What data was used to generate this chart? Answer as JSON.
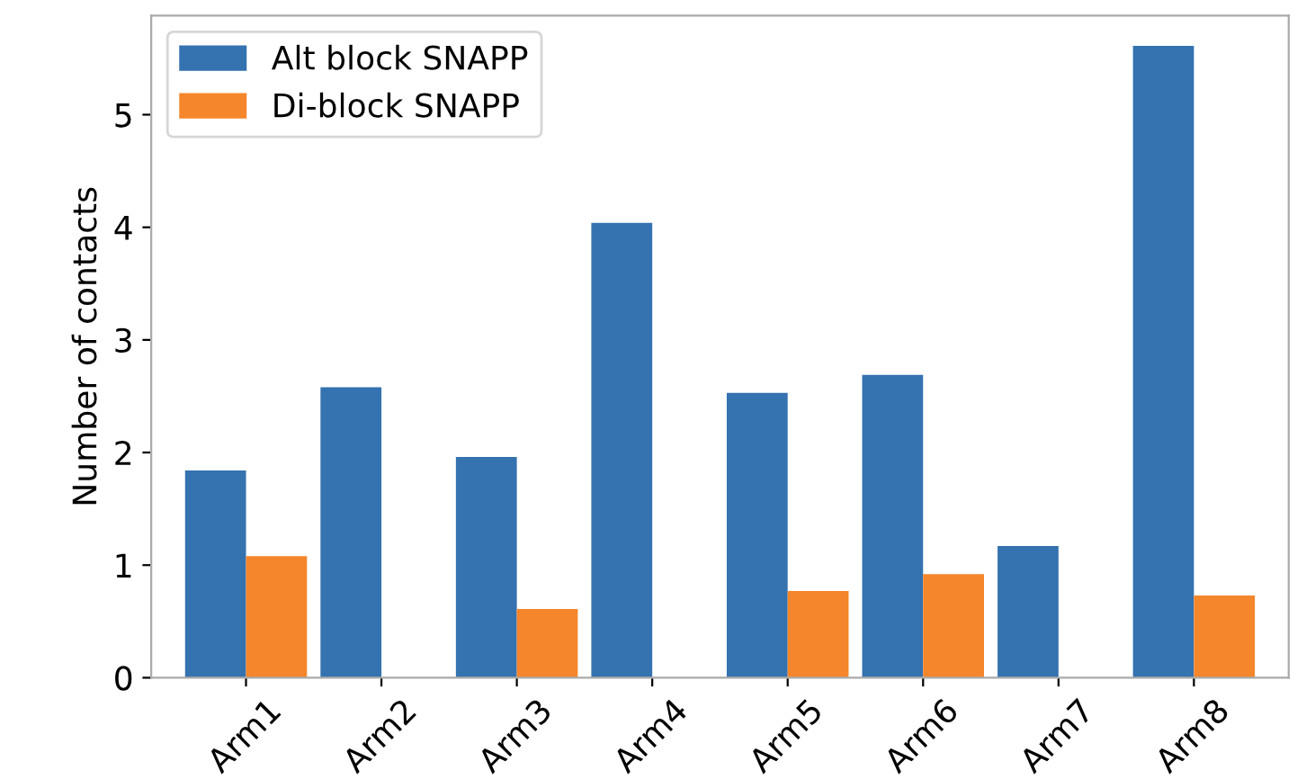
{
  "chart_data": {
    "type": "bar",
    "ylabel": "Number of contacts",
    "categories": [
      "Arm1",
      "Arm2",
      "Arm3",
      "Arm4",
      "Arm5",
      "Arm6",
      "Arm7",
      "Arm8"
    ],
    "series": [
      {
        "name": "Alt block SNAPP",
        "color": "#3572b0",
        "values": [
          1.84,
          2.58,
          1.96,
          4.04,
          2.53,
          2.69,
          1.17,
          5.61
        ]
      },
      {
        "name": "Di-block SNAPP",
        "color": "#f5862b",
        "values": [
          1.08,
          null,
          0.61,
          null,
          0.77,
          0.92,
          null,
          0.73
        ]
      }
    ],
    "ylim": [
      0,
      5.88
    ],
    "yticks": [
      0,
      1,
      2,
      3,
      4,
      5
    ],
    "grid": false,
    "legend": "top left"
  }
}
